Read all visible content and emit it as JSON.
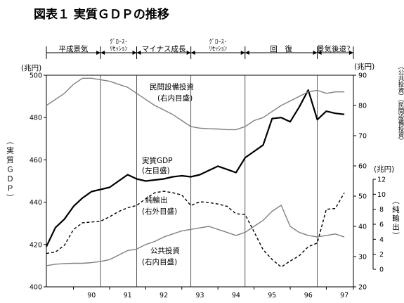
{
  "chart_data": {
    "type": "line",
    "title": "図表１ 実質ＧＤＰの推移",
    "x_ticks": [
      "90",
      "91",
      "92",
      "93",
      "94",
      "95",
      "96",
      "97"
    ],
    "phases": [
      {
        "label": "平成景気",
        "start": 1989.25,
        "end": 1990.75
      },
      {
        "label": "ｸﾞﾛｰｽ･\nﾘｾｯｼｮﾝ",
        "start": 1990.75,
        "end": 1991.75
      },
      {
        "label": "マイナス成長",
        "start": 1991.75,
        "end": 1993.25
      },
      {
        "label": "ｸﾞﾛｰｽ･\nﾘｾｯｼｮﾝ",
        "start": 1993.25,
        "end": 1994.75
      },
      {
        "label": "回　復",
        "start": 1994.75,
        "end": 1996.75
      },
      {
        "label": "景気後退？",
        "start": 1996.75,
        "end": 1997.75
      }
    ],
    "axes": {
      "left": {
        "unit": "(兆円)",
        "label": "（実質ＧＤＰ）",
        "range": [
          400,
          500
        ],
        "ticks": [
          "400",
          "420",
          "440",
          "460",
          "480",
          "500"
        ]
      },
      "right_inner": {
        "unit": "(兆円)",
        "label": "（公共投資）（民間設備投資）",
        "range": [
          20,
          90
        ],
        "ticks": [
          "20",
          "30",
          "40",
          "50",
          "60",
          "70",
          "80",
          "90"
        ]
      },
      "right_outer": {
        "unit": "(兆円)",
        "label": "（純輸出）",
        "range": [
          0,
          12
        ],
        "ticks": [
          "0",
          "2",
          "4",
          "6",
          "8",
          "10",
          "12"
        ]
      }
    },
    "series": [
      {
        "name": "実質GDP",
        "axis_note": "(左目盛)",
        "axis": "left",
        "color": "#000000",
        "style": "solid",
        "x": [
          1989.25,
          1989.5,
          1989.75,
          1990.0,
          1990.25,
          1990.5,
          1990.75,
          1991.0,
          1991.25,
          1991.5,
          1991.75,
          1992.0,
          1992.25,
          1992.5,
          1992.75,
          1993.0,
          1993.25,
          1993.5,
          1993.75,
          1994.0,
          1994.25,
          1994.5,
          1994.75,
          1995.0,
          1995.25,
          1995.5,
          1995.75,
          1996.0,
          1996.25,
          1996.5,
          1996.75,
          1997.0,
          1997.25,
          1997.5
        ],
        "y": [
          419,
          428,
          432,
          438,
          442,
          445,
          446,
          447,
          450,
          453,
          451,
          450,
          450.5,
          451,
          452,
          452.5,
          452,
          453,
          455,
          457,
          455.5,
          454,
          461,
          464,
          467,
          479.5,
          480,
          478,
          485,
          493,
          479,
          483,
          482,
          481.5
        ]
      },
      {
        "name": "民間設備投資",
        "axis_note": "(右内目盛)",
        "axis": "right_inner",
        "color": "#808080",
        "style": "solid",
        "x": [
          1989.25,
          1989.5,
          1989.75,
          1990.0,
          1990.25,
          1990.5,
          1990.75,
          1991.0,
          1991.25,
          1991.5,
          1991.75,
          1992.0,
          1992.25,
          1992.5,
          1992.75,
          1993.0,
          1993.25,
          1993.5,
          1993.75,
          1994.0,
          1994.25,
          1994.5,
          1994.75,
          1995.0,
          1995.25,
          1995.5,
          1995.75,
          1996.0,
          1996.25,
          1996.5,
          1996.75,
          1997.0,
          1997.25,
          1997.5
        ],
        "y": [
          80,
          82,
          84,
          87,
          89,
          89,
          88.5,
          88,
          87,
          86,
          84,
          82,
          80,
          78.5,
          77,
          75,
          73,
          72.5,
          72.3,
          72.2,
          72,
          72,
          73,
          75,
          76,
          78,
          80,
          81.5,
          83,
          84.5,
          85,
          84,
          84.5,
          84.5
        ]
      },
      {
        "name": "純輸出",
        "axis_note": "(右外目盛)",
        "axis": "right_outer",
        "color": "#000000",
        "style": "dashed",
        "x": [
          1989.25,
          1989.5,
          1989.75,
          1990.0,
          1990.25,
          1990.5,
          1990.75,
          1991.0,
          1991.25,
          1991.5,
          1991.75,
          1992.0,
          1992.25,
          1992.5,
          1992.75,
          1993.0,
          1993.25,
          1993.5,
          1993.75,
          1994.0,
          1994.25,
          1994.5,
          1994.75,
          1995.0,
          1995.25,
          1995.5,
          1995.75,
          1996.0,
          1996.25,
          1996.5,
          1996.75,
          1997.0,
          1997.25,
          1997.5
        ],
        "y": [
          2.1,
          2.3,
          3.2,
          5.3,
          6.2,
          6.3,
          6.4,
          7.0,
          7.7,
          8.2,
          8.5,
          9.4,
          10.2,
          10.4,
          10.2,
          9.9,
          8.5,
          9.0,
          8.9,
          8.7,
          8.4,
          7.4,
          7.3,
          5.0,
          2.6,
          1.3,
          0.3,
          1.1,
          1.8,
          3.0,
          3.5,
          8.0,
          8.1,
          10.2
        ]
      },
      {
        "name": "公共投資",
        "axis_note": "(右内目盛)",
        "axis": "right_inner",
        "color": "#808080",
        "style": "solid",
        "x": [
          1989.25,
          1989.5,
          1989.75,
          1990.0,
          1990.25,
          1990.5,
          1990.75,
          1991.0,
          1991.25,
          1991.5,
          1991.75,
          1992.0,
          1992.25,
          1992.5,
          1992.75,
          1993.0,
          1993.25,
          1993.5,
          1993.75,
          1994.0,
          1994.25,
          1994.5,
          1994.75,
          1995.0,
          1995.25,
          1995.5,
          1995.75,
          1996.0,
          1996.25,
          1996.5,
          1996.75,
          1997.0,
          1997.25,
          1997.5
        ],
        "y": [
          27,
          27.5,
          27.7,
          27.8,
          27.8,
          28,
          28.4,
          29,
          30.5,
          32,
          32.5,
          34,
          35,
          36.5,
          37.5,
          38.5,
          39,
          39.5,
          40,
          39,
          38,
          37,
          38,
          40,
          42,
          45,
          47,
          40,
          38,
          37,
          36.5,
          37,
          37.5,
          36.5
        ]
      }
    ]
  }
}
